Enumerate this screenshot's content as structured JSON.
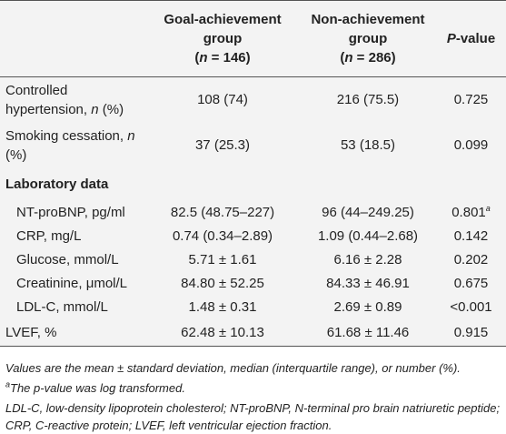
{
  "table": {
    "columns": [
      {
        "title": [
          {
            "text": "Goal-achievement group"
          }
        ],
        "count": [
          {
            "text": "("
          },
          {
            "text": "n",
            "italic": true
          },
          {
            "text": " = 146)"
          }
        ]
      },
      {
        "title": [
          {
            "text": "Non-achievement group"
          }
        ],
        "count": [
          {
            "text": "("
          },
          {
            "text": "n",
            "italic": true
          },
          {
            "text": " = 286)"
          }
        ]
      },
      {
        "title": [
          {
            "text": "P",
            "italic": true
          },
          {
            "text": "-value"
          }
        ]
      }
    ],
    "rows": [
      {
        "label": [
          {
            "text": "Controlled hypertension, "
          },
          {
            "text": "n",
            "italic": true
          },
          {
            "text": " (%)"
          }
        ],
        "values": [
          "108 (74)",
          "216 (75.5)",
          "0.725"
        ]
      },
      {
        "label": [
          {
            "text": "Smoking cessation, "
          },
          {
            "text": "n",
            "italic": true
          },
          {
            "text": " (%)"
          }
        ],
        "values": [
          "37 (25.3)",
          "53 (18.5)",
          "0.099"
        ]
      },
      {
        "label": [
          {
            "text": "Laboratory data"
          }
        ],
        "section": true
      },
      {
        "label": [
          {
            "text": "NT-proBNP, pg/ml"
          }
        ],
        "indent": true,
        "values": [
          "82.5 (48.75–227)",
          "96 (44–249.25)",
          "0.801"
        ],
        "p_note": "a"
      },
      {
        "label": [
          {
            "text": "CRP, mg/L"
          }
        ],
        "indent": true,
        "values": [
          "0.74 (0.34–2.89)",
          "1.09 (0.44–2.68)",
          "0.142"
        ]
      },
      {
        "label": [
          {
            "text": "Glucose, mmol/L"
          }
        ],
        "indent": true,
        "values": [
          "5.71 ± 1.61",
          "6.16 ± 2.28",
          "0.202"
        ]
      },
      {
        "label": [
          {
            "text": "Creatinine, μmol/L"
          }
        ],
        "indent": true,
        "values": [
          "84.80 ± 52.25",
          "84.33 ± 46.91",
          "0.675"
        ]
      },
      {
        "label": [
          {
            "text": "LDL-C, mmol/L"
          }
        ],
        "indent": true,
        "values": [
          "1.48 ± 0.31",
          "2.69 ± 0.89",
          "<0.001"
        ]
      },
      {
        "label": [
          {
            "text": "LVEF, %"
          }
        ],
        "values": [
          "62.48 ± 10.13",
          "61.68 ± 11.46",
          "0.915"
        ]
      }
    ],
    "notes": [
      [
        {
          "text": "Values are the mean ± standard deviation, median (interquartile range), or number (%).",
          "italic": true
        }
      ],
      [
        {
          "text": "a",
          "italic": true,
          "sup": true
        },
        {
          "text": "The p-value was log transformed.",
          "italic": true
        }
      ],
      [
        {
          "text": "LDL-C, low-density lipoprotein cholesterol; NT-proBNP, N-terminal pro brain natriuretic peptide; CRP, C-reactive protein; LVEF, left ventricular ejection fraction.",
          "italic": true
        }
      ]
    ]
  }
}
